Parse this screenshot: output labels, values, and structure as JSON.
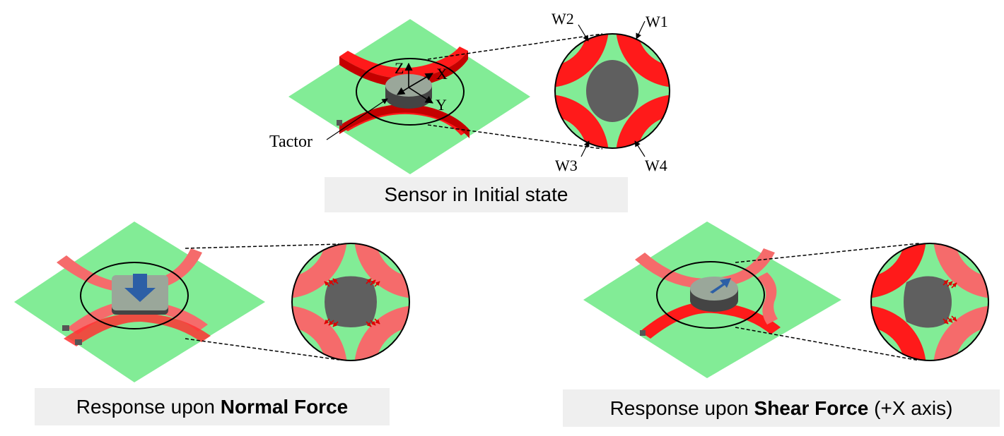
{
  "panels": {
    "initial": {
      "caption": "Sensor in Initial state",
      "labels": {
        "tactor": "Tactor",
        "axis_z": "Z",
        "axis_x": "X",
        "axis_y": "Y",
        "w1": "W1",
        "w2": "W2",
        "w3": "W3",
        "w4": "W4"
      }
    },
    "normal": {
      "caption_prefix": "Response upon ",
      "caption_bold": "Normal Force",
      "caption_suffix": ""
    },
    "shear": {
      "caption_prefix": "Response upon ",
      "caption_bold": "Shear Force",
      "caption_suffix": " (+X axis)"
    }
  },
  "colors": {
    "substrate": "#82ec96",
    "wire_active": "#ff1a1a",
    "wire_relaxed": "#f56b6b",
    "wire_edge": "#c40000",
    "tactor": "#5f5f5f",
    "force_arrow": "#2c5fa6",
    "caption_bg": "#efefef"
  }
}
